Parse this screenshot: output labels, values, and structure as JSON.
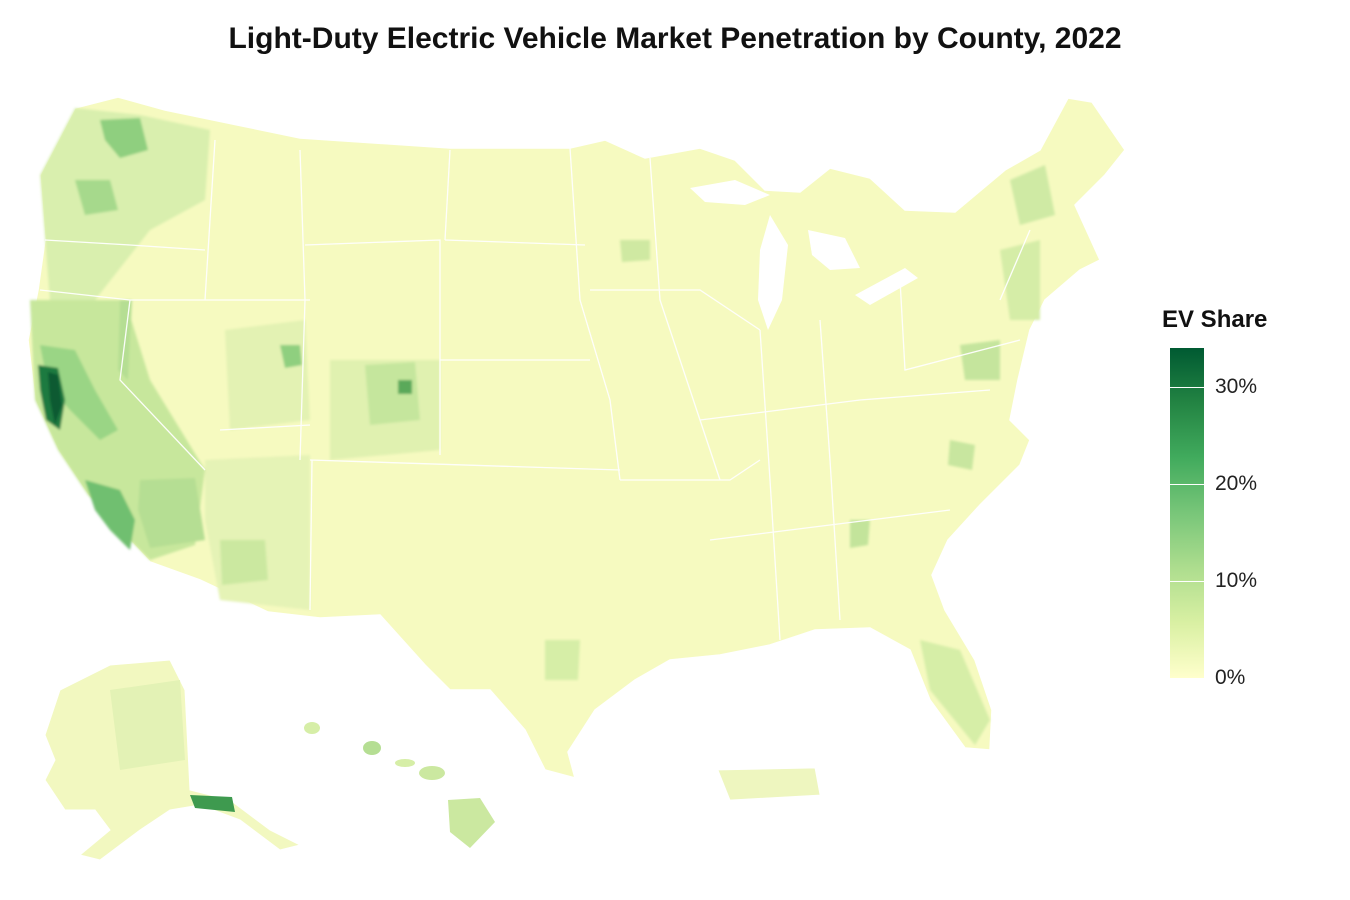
{
  "title": "Light-Duty Electric Vehicle Market Penetration by County, 2022",
  "legend": {
    "title": "EV Share",
    "min": 0,
    "max": 34,
    "ticks": [
      {
        "value": 0,
        "label": "0%"
      },
      {
        "value": 10,
        "label": "10%"
      },
      {
        "value": 20,
        "label": "20%"
      },
      {
        "value": 30,
        "label": "30%"
      }
    ],
    "colors": [
      "#ffffcc",
      "#d9f0a3",
      "#addd8e",
      "#78c679",
      "#41ab5d",
      "#238443",
      "#005a32"
    ]
  }
}
